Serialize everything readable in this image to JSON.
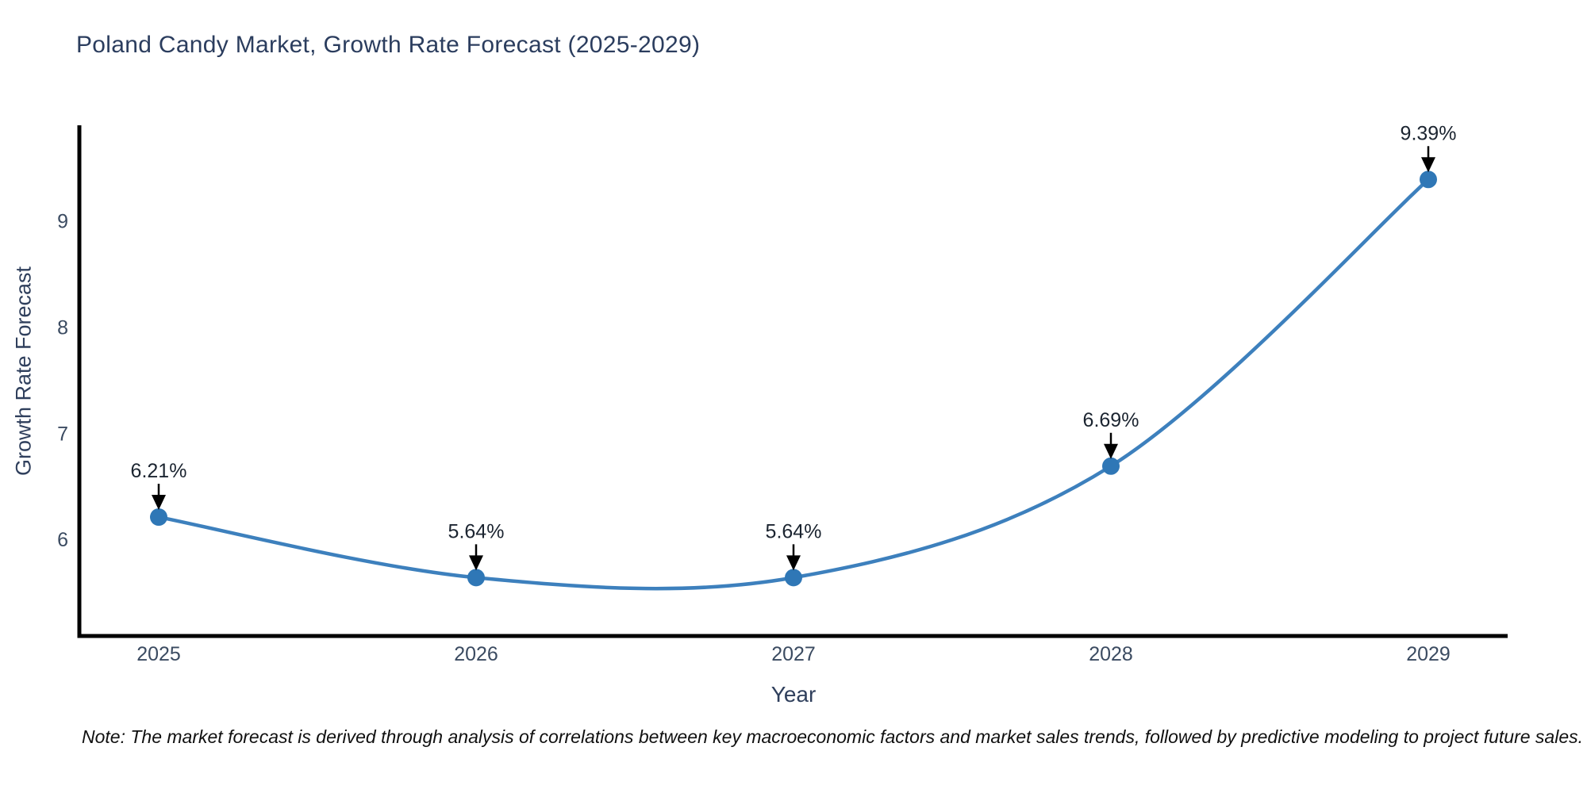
{
  "page": {
    "note": "Note: The market forecast is derived through analysis of correlations between key macroeconomic factors and market sales trends, followed by predictive modeling to project future sales."
  },
  "chart_data": {
    "type": "line",
    "title": "Poland Candy Market, Growth Rate Forecast (2025-2029)",
    "xlabel": "Year",
    "ylabel": "Growth Rate Forecast",
    "categories": [
      "2025",
      "2026",
      "2027",
      "2028",
      "2029"
    ],
    "series": [
      {
        "name": "Growth Rate Forecast",
        "values": [
          6.21,
          5.64,
          5.64,
          6.69,
          9.39
        ]
      }
    ],
    "point_labels": [
      "6.21%",
      "5.64%",
      "5.64%",
      "6.69%",
      "9.39%"
    ],
    "yticks": [
      6,
      7,
      8,
      9
    ],
    "ylim": [
      5.09,
      9.9
    ],
    "line_shape": "spline",
    "grid": false,
    "legend": false,
    "colors": {
      "line": "#3d80bd",
      "marker": "#2f77b6",
      "axis": "#000000",
      "title_text": "#2b3d5e",
      "axis_label_text": "#2f3f5c",
      "tick_text": "#3b4b61",
      "annotation_text": "#1b2430",
      "note_text": "#101010",
      "background": "#ffffff"
    }
  }
}
